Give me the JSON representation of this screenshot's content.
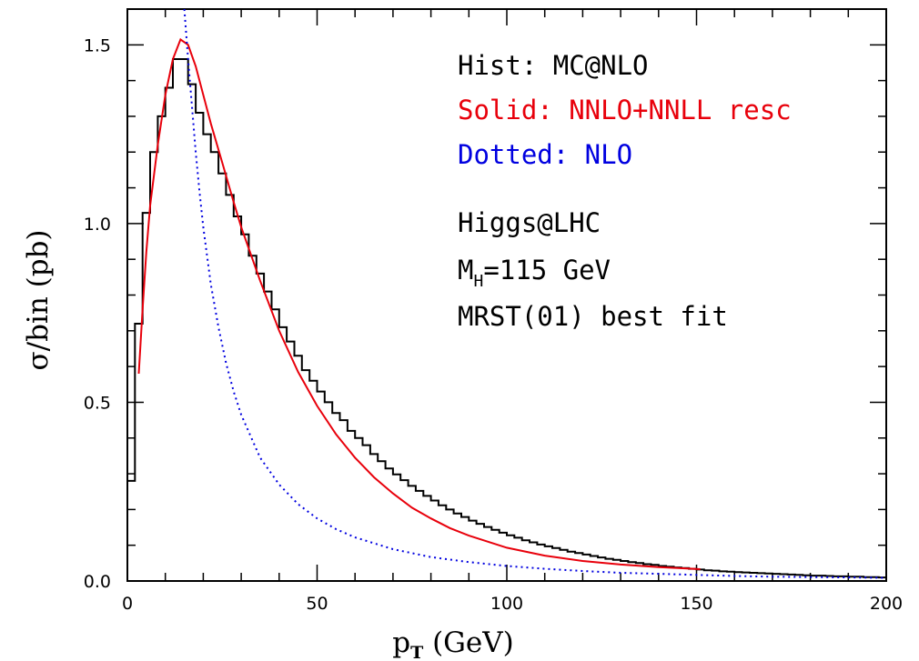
{
  "chart_data": {
    "type": "line",
    "xlabel_main": "p",
    "xlabel_sub": "T",
    "xlabel_rest": " (GeV)",
    "ylabel": "σ/bin (pb)",
    "xlim": [
      0,
      200
    ],
    "ylim": [
      0,
      1.6
    ],
    "x_ticks": [
      0,
      50,
      100,
      150,
      200
    ],
    "y_ticks": [
      0,
      0.5,
      1.0,
      1.5
    ],
    "x_tick_labels": [
      "0",
      "50",
      "100",
      "150",
      "200"
    ],
    "y_tick_labels": [
      "0.0",
      "0.5",
      "1.0",
      "1.5"
    ],
    "annotations": {
      "hist": "Hist: MC@NLO",
      "solid": "Solid: NNLO+NNLL resc",
      "dotted": "Dotted: NLO",
      "process": "Higgs@LHC",
      "mass_main": "M",
      "mass_sub": "H",
      "mass_rest": "=115 GeV",
      "pdf": "MRST(01) best fit"
    },
    "colors": {
      "hist": "#000000",
      "solid": "#e8000b",
      "dotted": "#0000e0"
    },
    "series": [
      {
        "name": "MC@NLO",
        "style": "histogram",
        "bin_width": 2,
        "bin_start": 0,
        "values": [
          0.28,
          0.72,
          1.03,
          1.2,
          1.3,
          1.38,
          1.46,
          1.46,
          1.39,
          1.31,
          1.25,
          1.2,
          1.14,
          1.08,
          1.02,
          0.97,
          0.91,
          0.86,
          0.81,
          0.76,
          0.71,
          0.67,
          0.63,
          0.59,
          0.56,
          0.53,
          0.5,
          0.47,
          0.45,
          0.42,
          0.4,
          0.38,
          0.355,
          0.335,
          0.315,
          0.298,
          0.282,
          0.266,
          0.252,
          0.238,
          0.225,
          0.212,
          0.2,
          0.189,
          0.179,
          0.169,
          0.16,
          0.151,
          0.143,
          0.135,
          0.128,
          0.121,
          0.114,
          0.108,
          0.102,
          0.097,
          0.092,
          0.087,
          0.082,
          0.078,
          0.074,
          0.07,
          0.066,
          0.062,
          0.059,
          0.056,
          0.053,
          0.05,
          0.047,
          0.045,
          0.042,
          0.04,
          0.038,
          0.036,
          0.034,
          0.032,
          0.03,
          0.029,
          0.027,
          0.026,
          0.025,
          0.024,
          0.023,
          0.022,
          0.021,
          0.02,
          0.019,
          0.018,
          0.017,
          0.016,
          0.015,
          0.015,
          0.014,
          0.013,
          0.013,
          0.012,
          0.012,
          0.011,
          0.011,
          0.01
        ]
      },
      {
        "name": "NNLO+NNLL resc",
        "style": "solid",
        "x": [
          3,
          4,
          5,
          6,
          8,
          10,
          12,
          14,
          16,
          18,
          20,
          22,
          25,
          28,
          30,
          35,
          40,
          45,
          50,
          55,
          60,
          65,
          70,
          75,
          80,
          85,
          90,
          100,
          110,
          120,
          130,
          140,
          151
        ],
        "y": [
          0.58,
          0.76,
          0.92,
          1.05,
          1.22,
          1.36,
          1.46,
          1.515,
          1.5,
          1.44,
          1.36,
          1.28,
          1.17,
          1.06,
          0.99,
          0.84,
          0.7,
          0.585,
          0.49,
          0.41,
          0.345,
          0.29,
          0.245,
          0.205,
          0.175,
          0.148,
          0.127,
          0.093,
          0.071,
          0.056,
          0.046,
          0.039,
          0.033
        ]
      },
      {
        "name": "NLO",
        "style": "dotted",
        "x": [
          15,
          16,
          17,
          18,
          19,
          20,
          22,
          24,
          26,
          28,
          30,
          35,
          40,
          45,
          50,
          55,
          60,
          70,
          80,
          90,
          100,
          110,
          120,
          130,
          140,
          150,
          160,
          170,
          180,
          190,
          200
        ],
        "y": [
          1.6,
          1.46,
          1.33,
          1.2,
          1.09,
          0.99,
          0.83,
          0.71,
          0.61,
          0.53,
          0.465,
          0.345,
          0.27,
          0.215,
          0.175,
          0.145,
          0.122,
          0.089,
          0.067,
          0.053,
          0.042,
          0.034,
          0.028,
          0.023,
          0.02,
          0.017,
          0.014,
          0.012,
          0.011,
          0.01,
          0.009
        ]
      }
    ]
  }
}
